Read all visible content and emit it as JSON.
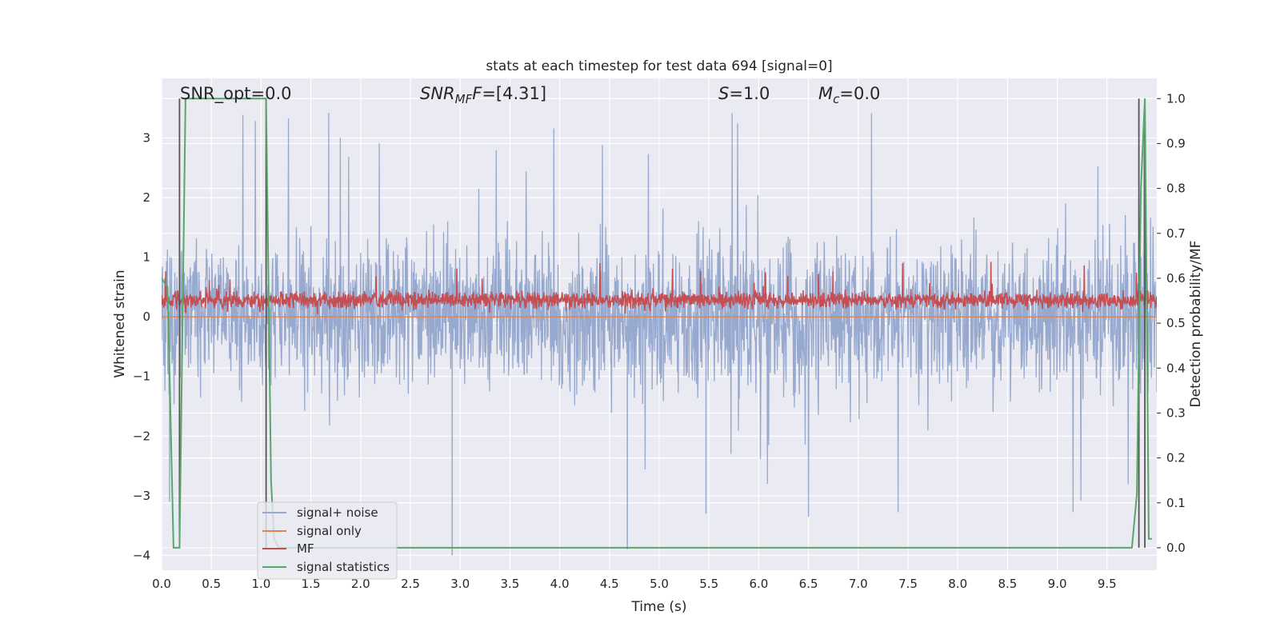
{
  "chart_data": {
    "type": "line",
    "title": "stats at each timestep for test data 694 [signal=0]",
    "xlabel": "Time (s)",
    "ylabel": "Whitened strain",
    "y2label": "Detection probability/MF",
    "xlim": [
      0.0,
      10.0
    ],
    "ylim": [
      -4.25,
      4.0
    ],
    "y2lim": [
      -0.05,
      1.045
    ],
    "xticks": [
      "0.0",
      "0.5",
      "1.0",
      "1.5",
      "2.0",
      "2.5",
      "3.0",
      "3.5",
      "4.0",
      "4.5",
      "5.0",
      "5.5",
      "6.0",
      "6.5",
      "7.0",
      "7.5",
      "8.0",
      "8.5",
      "9.0",
      "9.5"
    ],
    "xtick_values": [
      0.0,
      0.5,
      1.0,
      1.5,
      2.0,
      2.5,
      3.0,
      3.5,
      4.0,
      4.5,
      5.0,
      5.5,
      6.0,
      6.5,
      7.0,
      7.5,
      8.0,
      8.5,
      9.0,
      9.5
    ],
    "yticks": [
      "3",
      "2",
      "1",
      "0",
      "−1",
      "−2",
      "−3",
      "−4"
    ],
    "ytick_values": [
      3,
      2,
      1,
      0,
      -1,
      -2,
      -3,
      -4
    ],
    "y2ticks": [
      "1.0",
      "0.9",
      "0.8",
      "0.7",
      "0.6",
      "0.5",
      "0.4",
      "0.3",
      "0.2",
      "0.1",
      "0.0"
    ],
    "y2tick_values": [
      1.0,
      0.9,
      0.8,
      0.7,
      0.6,
      0.5,
      0.4,
      0.3,
      0.2,
      0.1,
      0.0
    ],
    "grid": true,
    "legend_position": "lower-left",
    "annotations": {
      "snr_opt": "SNR_opt=0.0",
      "snr_mf_base": "SNR",
      "snr_mf_sub": "MF",
      "snr_mf_value": "=[4.31]",
      "s_label": "S",
      "s_value": "=1.0",
      "mc_base": "M",
      "mc_sub": "c",
      "mc_value": "=0.0"
    },
    "series": [
      {
        "name": "signal+ noise",
        "color": "#97a9ce",
        "axis": "left",
        "kind": "noise",
        "envelope": {
          "typical_max": 1.9,
          "typical_min": -1.9,
          "peak_max": 3.5,
          "peak_min": -4.0
        },
        "extreme_points": [
          {
            "x": 2.92,
            "y": -4.0
          },
          {
            "x": 4.68,
            "y": -3.9
          },
          {
            "x": 5.47,
            "y": -3.3
          },
          {
            "x": 9.87,
            "y": 3.35
          },
          {
            "x": 0.08,
            "y": -3.1
          }
        ]
      },
      {
        "name": "signal only",
        "color": "#dd8452",
        "axis": "left",
        "x": [
          0.0,
          10.0
        ],
        "y": [
          0.0,
          0.0
        ]
      },
      {
        "name": "MF",
        "color": "#c44e52",
        "axis": "left",
        "kind": "noise",
        "envelope": {
          "baseline": 0.28,
          "typical_max": 0.5,
          "typical_min": 0.05,
          "peak_max": 0.95,
          "peak_min": 0.02
        }
      },
      {
        "name": "signal statistics",
        "color": "#55a868",
        "axis": "right",
        "x": [
          0.0,
          0.06,
          0.12,
          0.18,
          0.24,
          0.3,
          1.05,
          1.1,
          1.13,
          1.18,
          1.5,
          9.75,
          9.8,
          9.84,
          9.88,
          9.92,
          9.95
        ],
        "y": [
          0.6,
          0.58,
          0.0,
          0.0,
          1.0,
          1.0,
          1.0,
          0.15,
          0.02,
          0.0,
          0.0,
          0.0,
          0.12,
          0.8,
          1.0,
          0.02,
          0.02
        ]
      }
    ],
    "vertical_markers": [
      {
        "x": 0.18,
        "color": "#555555"
      },
      {
        "x": 1.05,
        "color": "#555555"
      },
      {
        "x": 9.82,
        "color": "#555555"
      },
      {
        "x": 9.88,
        "color": "#555555"
      }
    ]
  }
}
